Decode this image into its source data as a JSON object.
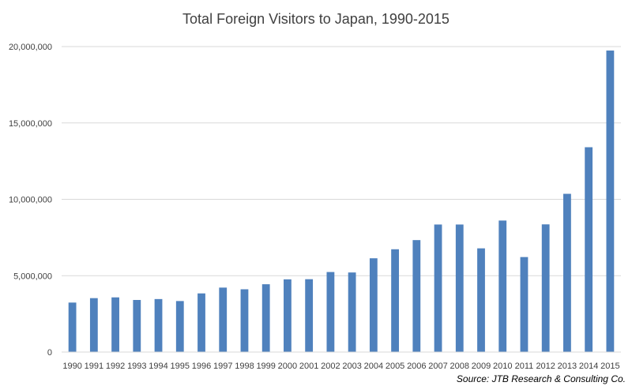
{
  "chart_data": {
    "type": "bar",
    "title": "Total Foreign Visitors to Japan, 1990-2015",
    "source": "Source: JTB Research & Consulting Co.",
    "xlabel": "",
    "ylabel": "",
    "categories": [
      "1990",
      "1991",
      "1992",
      "1993",
      "1994",
      "1995",
      "1996",
      "1997",
      "1998",
      "1999",
      "2000",
      "2001",
      "2002",
      "2003",
      "2004",
      "2005",
      "2006",
      "2007",
      "2008",
      "2009",
      "2010",
      "2011",
      "2012",
      "2013",
      "2014",
      "2015"
    ],
    "values": [
      3240000,
      3530000,
      3580000,
      3410000,
      3470000,
      3340000,
      3840000,
      4220000,
      4110000,
      4440000,
      4760000,
      4770000,
      5240000,
      5210000,
      6140000,
      6730000,
      7330000,
      8350000,
      8350000,
      6790000,
      8610000,
      6220000,
      8360000,
      10360000,
      13410000,
      19740000
    ],
    "ylim": [
      0,
      20000000
    ],
    "yticks": [
      0,
      5000000,
      10000000,
      15000000,
      20000000
    ],
    "ytick_labels": [
      "0",
      "5,000,000",
      "10,000,000",
      "15,000,000",
      "20,000,000"
    ],
    "grid": true,
    "legend": "none",
    "bar_color": "#4f81bd",
    "grid_color": "#d9d9d9"
  }
}
